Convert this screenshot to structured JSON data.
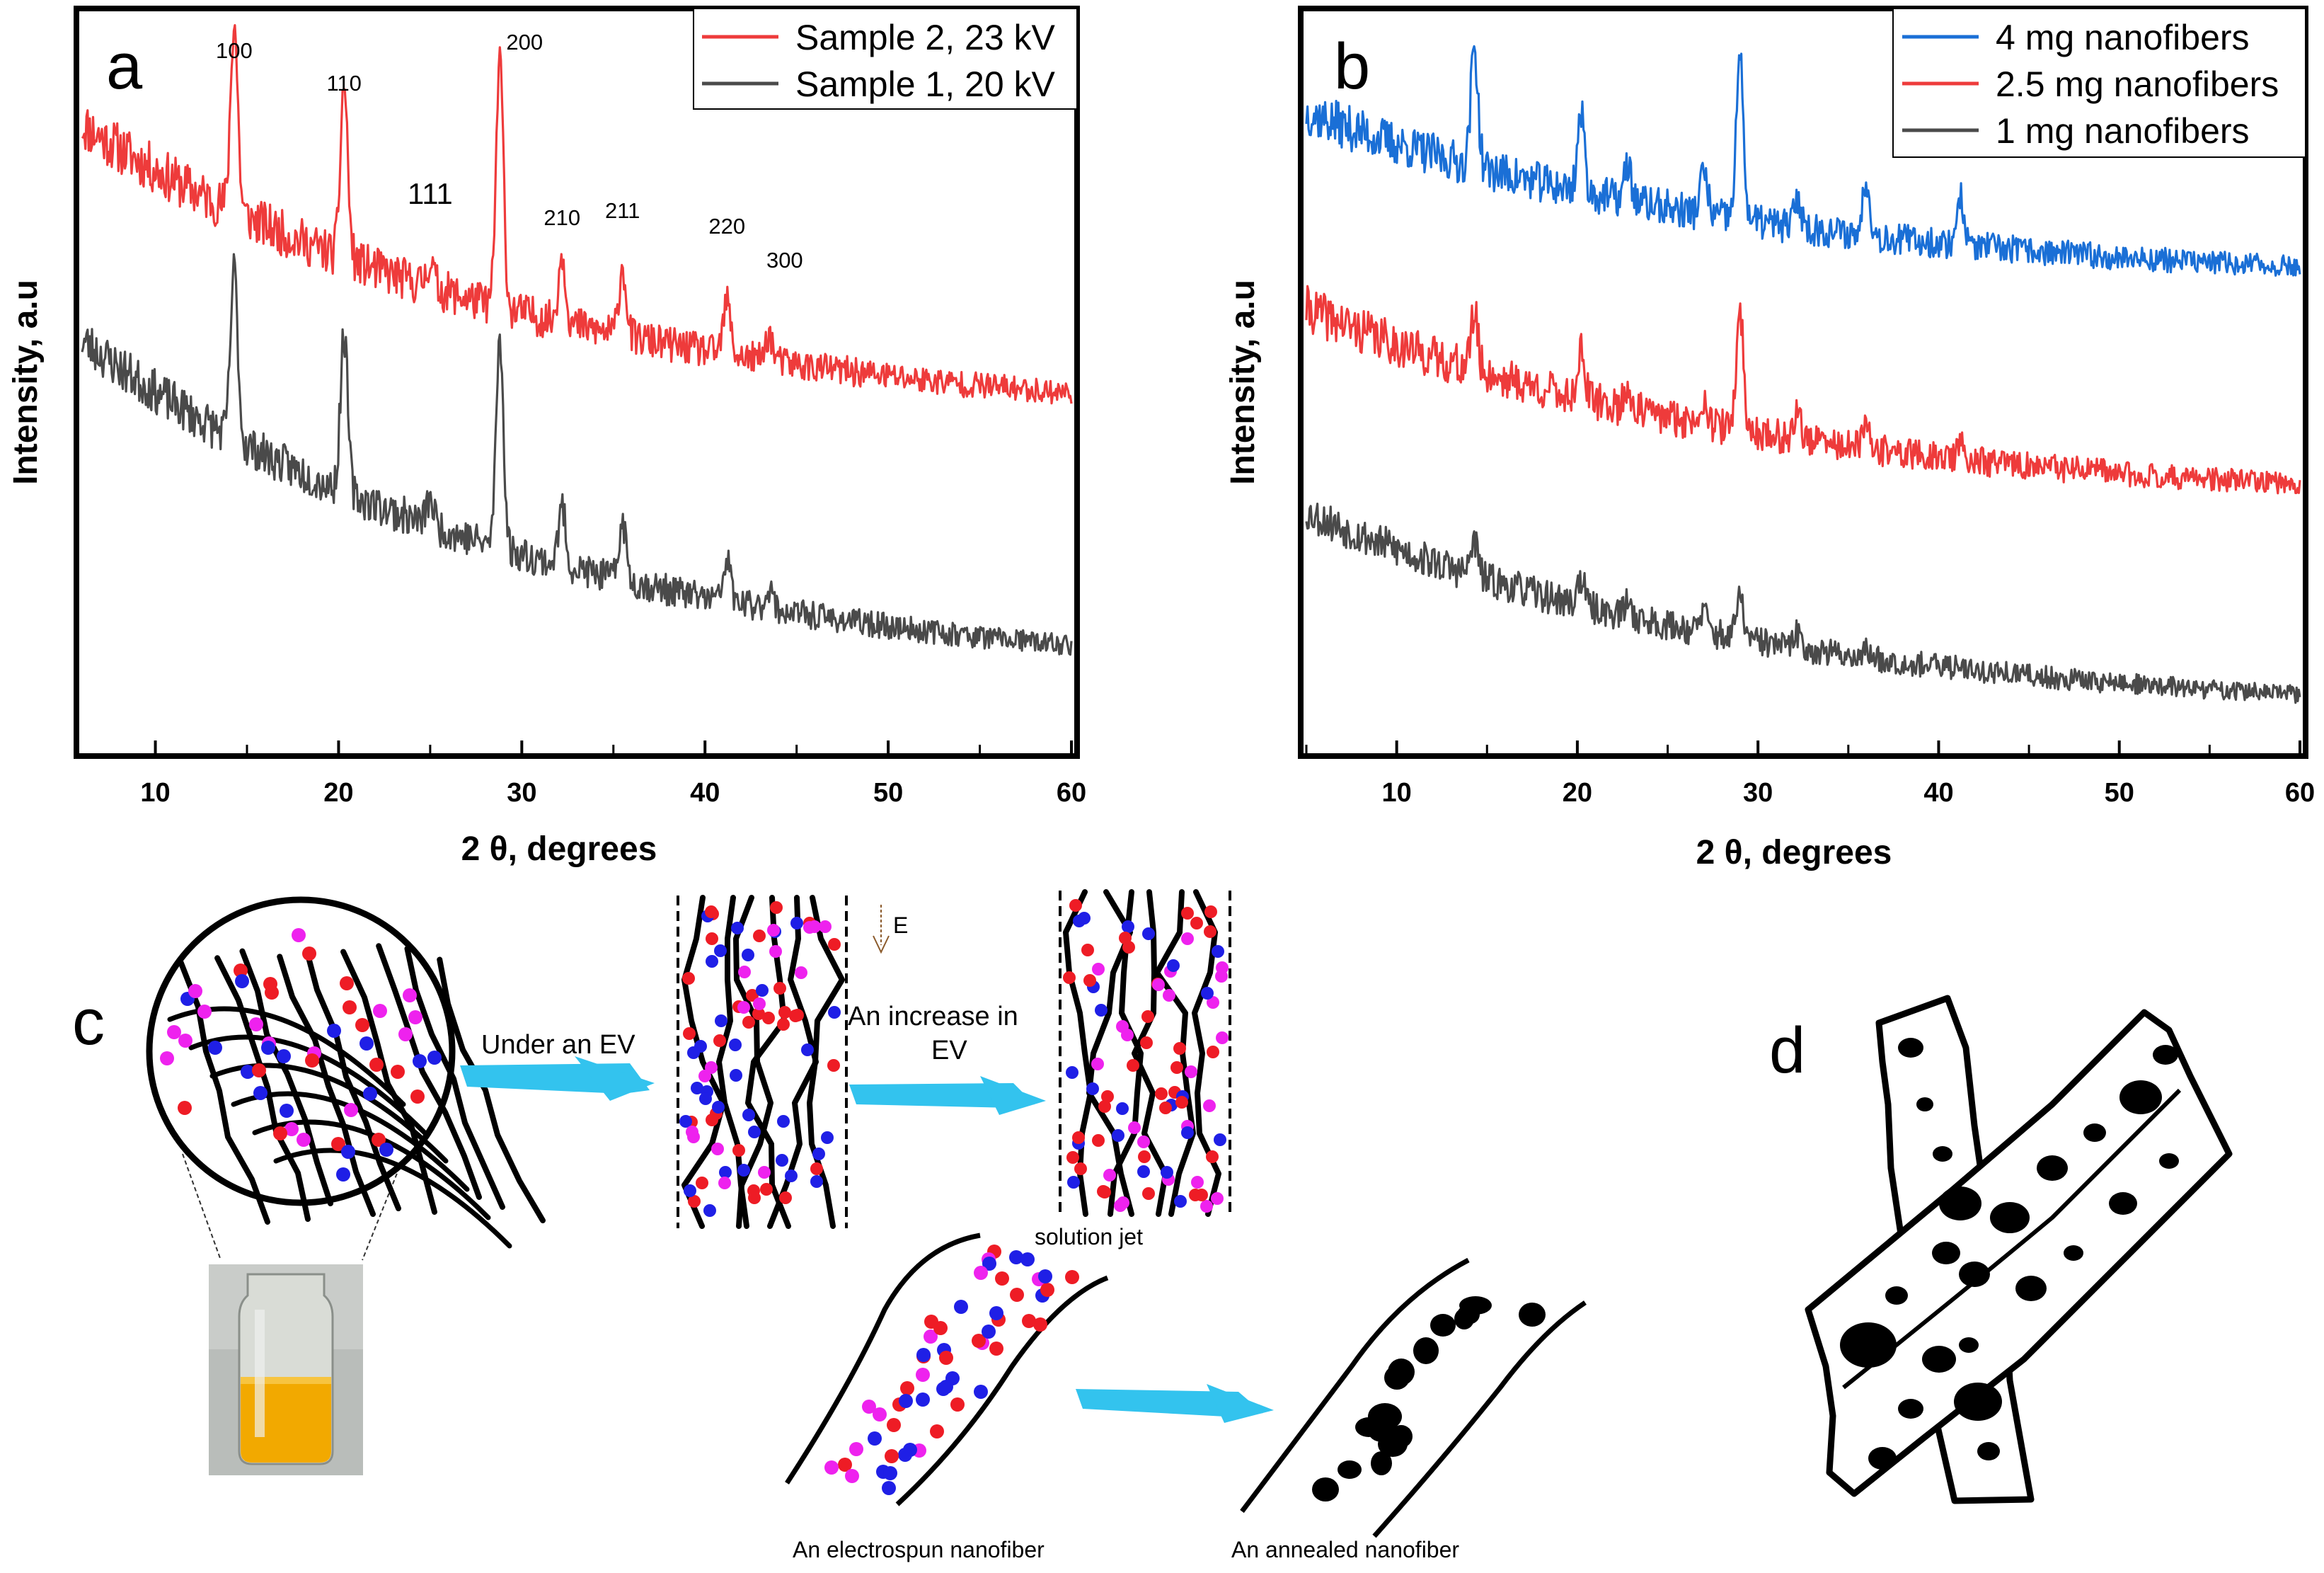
{
  "chart_data": [
    {
      "id": "a",
      "type": "line",
      "panel_label": "a",
      "xlabel": "2 θ, degrees",
      "ylabel": "Intensity, a.u",
      "xlim": [
        6,
        60
      ],
      "x_ticks": [
        10,
        20,
        30,
        40,
        50,
        60
      ],
      "y_ticks_shown": false,
      "legend_position": "top-right",
      "peaks": [
        {
          "label": "100",
          "x": 14.3
        },
        {
          "label": "110",
          "x": 20.3
        },
        {
          "label": "111",
          "x": 25.0
        },
        {
          "label": "200",
          "x": 28.8
        },
        {
          "label": "210",
          "x": 32.2
        },
        {
          "label": "211",
          "x": 35.5
        },
        {
          "label": "220",
          "x": 41.2
        },
        {
          "label": "300",
          "x": 43.5
        }
      ],
      "series": [
        {
          "name": "Sample 2, 23 kV",
          "color": "#ee3b3b",
          "baseline_start": 0.79,
          "baseline_end": 0.28,
          "peak_heights": [
            0.36,
            0.33,
            0.05,
            0.47,
            0.13,
            0.13,
            0.1,
            0.05
          ],
          "noise": 0.045,
          "seed": 11
        },
        {
          "name": "Sample 1, 20 kV",
          "color": "#4a4a4a",
          "baseline_start": 0.38,
          "baseline_end": -0.2,
          "peak_heights": [
            0.32,
            0.3,
            0.05,
            0.4,
            0.11,
            0.11,
            0.08,
            0.04
          ],
          "noise": 0.04,
          "seed": 23
        }
      ]
    },
    {
      "id": "b",
      "type": "line",
      "panel_label": "b",
      "xlabel": "2 θ, degrees",
      "ylabel": "Intensity, a.u",
      "xlim": [
        5,
        60
      ],
      "x_ticks": [
        10,
        20,
        30,
        40,
        50,
        60
      ],
      "y_ticks_shown": false,
      "legend_position": "top-right",
      "peaks": [
        {
          "x": 14.3
        },
        {
          "x": 20.2
        },
        {
          "x": 22.8
        },
        {
          "x": 27.0
        },
        {
          "x": 29.0
        },
        {
          "x": 32.2
        },
        {
          "x": 36.0
        },
        {
          "x": 41.2
        }
      ],
      "series": [
        {
          "name": "4 mg nanofibers",
          "color": "#1a6fd6",
          "baseline_start": 0.86,
          "baseline_end": 0.64,
          "peak_heights": [
            0.17,
            0.11,
            0.05,
            0.06,
            0.23,
            0.04,
            0.08,
            0.07
          ],
          "noise": 0.03,
          "seed": 37
        },
        {
          "name": "2.5 mg nanofibers",
          "color": "#ee3b3b",
          "baseline_start": 0.58,
          "baseline_end": 0.33,
          "peak_heights": [
            0.08,
            0.07,
            0.03,
            0.04,
            0.17,
            0.04,
            0.03,
            0.02
          ],
          "noise": 0.03,
          "seed": 41
        },
        {
          "name": "1 mg nanofibers",
          "color": "#4a4a4a",
          "baseline_start": 0.29,
          "baseline_end": 0.03,
          "peak_heights": [
            0.05,
            0.04,
            0.02,
            0.03,
            0.06,
            0.02,
            0.01,
            0.01
          ],
          "noise": 0.025,
          "seed": 53
        }
      ]
    }
  ],
  "diagram_c": {
    "panel_label": "c",
    "label_under_ev": "Under an EV",
    "label_increase": "An increase in",
    "label_ev": "EV",
    "label_field": "E",
    "label_jet": "solution jet",
    "label_electrospun": "An electrospun nanofiber",
    "label_annealed": "An annealed nanofiber",
    "colors": {
      "red": "#ee1c25",
      "blue": "#1f1fe6",
      "magenta": "#ee22ee",
      "arrow": "#33c3ee",
      "vial_liquid": "#f2a900"
    }
  },
  "diagram_d": {
    "panel_label": "d"
  }
}
